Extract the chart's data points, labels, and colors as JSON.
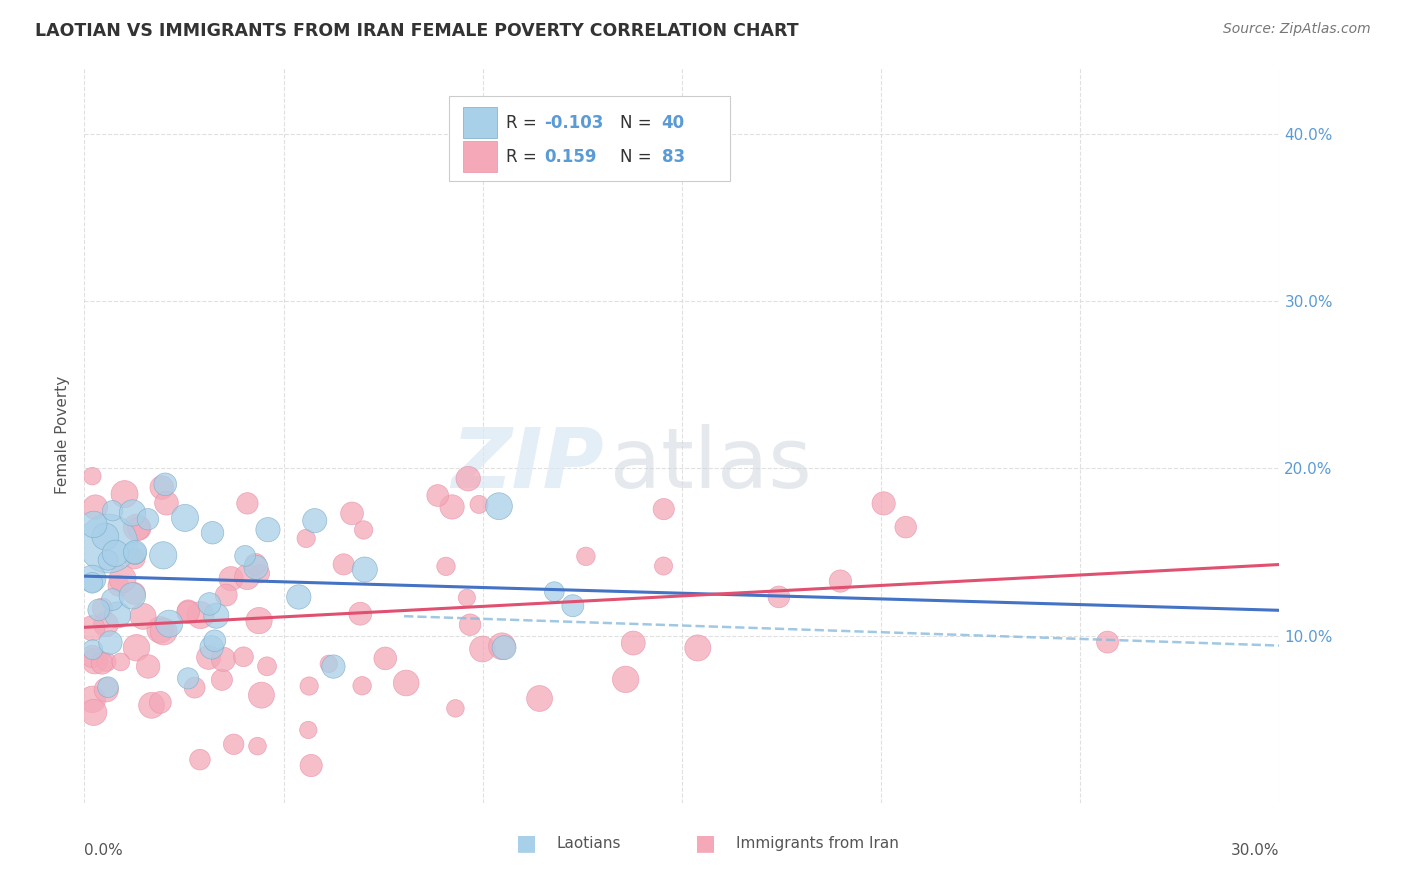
{
  "title": "LAOTIAN VS IMMIGRANTS FROM IRAN FEMALE POVERTY CORRELATION CHART",
  "source": "Source: ZipAtlas.com",
  "ylabel": "Female Poverty",
  "xlim": [
    0.0,
    0.3
  ],
  "ylim": [
    0.0,
    0.44
  ],
  "blue_color": "#A8D0E8",
  "pink_color": "#F4A8B8",
  "blue_line_color": "#4472C4",
  "pink_line_color": "#E05070",
  "blue_dashed_color": "#99CCEE",
  "blue_R": -0.103,
  "blue_N": 40,
  "pink_R": 0.159,
  "pink_N": 83,
  "background_color": "#FFFFFF",
  "grid_color": "#DDDDDD",
  "title_color": "#333333",
  "source_color": "#777777",
  "ytick_color": "#5B9BD5",
  "label_color": "#555555"
}
